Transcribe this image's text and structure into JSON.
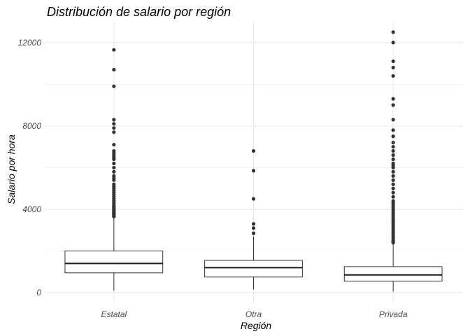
{
  "chart_data": {
    "type": "boxplot",
    "title": "Distribución de salario por región",
    "xlabel": "Región",
    "ylabel": "Salario por hora",
    "ylim": [
      -500,
      13000
    ],
    "yticks": [
      0,
      4000,
      8000,
      12000
    ],
    "ytick_labels": [
      "0",
      "4000",
      "8000",
      "12000"
    ],
    "grid": true,
    "categories": [
      "Estatal",
      "Otra",
      "Privada"
    ],
    "boxes": [
      {
        "category": "Estatal",
        "whisker_low": 100,
        "q1": 950,
        "median": 1400,
        "q3": 2000,
        "whisker_high": 3600,
        "outliers": [
          3650,
          3700,
          3750,
          3800,
          3850,
          3900,
          3950,
          4000,
          4050,
          4100,
          4150,
          4200,
          4300,
          4400,
          4500,
          4600,
          4700,
          4800,
          4900,
          5000,
          5100,
          5200,
          5400,
          5500,
          5600,
          5800,
          6000,
          6200,
          6400,
          6500,
          6600,
          6700,
          6800,
          7100,
          7700,
          7900,
          8100,
          8300,
          9900,
          10700,
          11650
        ]
      },
      {
        "category": "Otra",
        "whisker_low": 150,
        "q1": 750,
        "median": 1200,
        "q3": 1550,
        "whisker_high": 2700,
        "outliers": [
          2850,
          3100,
          3300,
          4500,
          5850,
          6800
        ]
      },
      {
        "category": "Privada",
        "whisker_low": 50,
        "q1": 550,
        "median": 850,
        "q3": 1250,
        "whisker_high": 2350,
        "outliers": [
          2400,
          2450,
          2500,
          2600,
          2700,
          2800,
          2900,
          3000,
          3100,
          3200,
          3300,
          3400,
          3500,
          3600,
          3700,
          3800,
          3900,
          4000,
          4100,
          4200,
          4300,
          4400,
          4600,
          4800,
          5000,
          5200,
          5400,
          5600,
          5800,
          6000,
          6100,
          6200,
          6400,
          6600,
          6800,
          7000,
          7200,
          7500,
          7800,
          8300,
          9000,
          9300,
          10400,
          10800,
          11100,
          12000,
          12500
        ]
      }
    ]
  }
}
